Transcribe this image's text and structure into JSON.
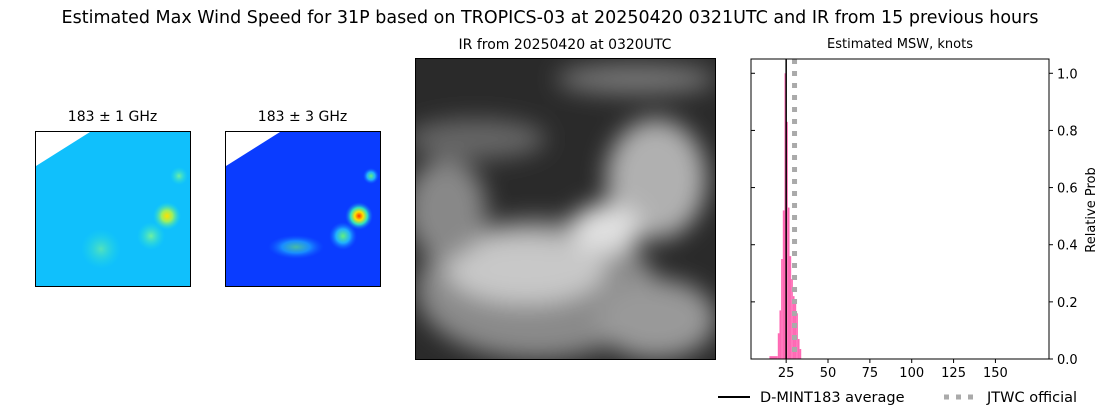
{
  "title": "Estimated Max Wind Speed for 31P based on TROPICS-03 at 20250420 0321UTC and IR from 15 previous hours",
  "panels": {
    "mw1_title": "183 ± 1 GHz",
    "mw3_title": "183 ± 3 GHz",
    "ir_title": "IR from 20250420 at 0320UTC"
  },
  "chart_data": {
    "type": "bar",
    "title": "Estimated MSW, knots",
    "xlabel": "",
    "ylabel": "Relative Prob",
    "xlim": [
      4,
      182
    ],
    "ylim": [
      0,
      1.05
    ],
    "xticks": [
      25,
      50,
      75,
      100,
      125,
      150
    ],
    "yticks": [
      0.0,
      0.2,
      0.4,
      0.6,
      0.8,
      1.0
    ],
    "bar_color": "#ff69b4",
    "bins": [
      15,
      20,
      21,
      22,
      23,
      24,
      25,
      26,
      27,
      28,
      29,
      30,
      31,
      32,
      33
    ],
    "bin_widths": [
      5,
      1,
      1,
      1,
      1,
      1,
      1,
      1,
      1,
      1,
      1,
      1,
      1,
      1,
      1
    ],
    "values": [
      0.01,
      0.09,
      0.17,
      0.35,
      0.52,
      1.0,
      0.83,
      0.53,
      0.36,
      0.28,
      0.22,
      0.2,
      0.16,
      0.07,
      0.035
    ],
    "lines": [
      {
        "name": "D-MINT183 average",
        "x": 25,
        "color": "#000000",
        "style": "solid"
      },
      {
        "name": "JTWC official",
        "x": 30,
        "color": "#aaaaaa",
        "style": "dotted"
      }
    ],
    "legend_placement": "bottom-right"
  }
}
